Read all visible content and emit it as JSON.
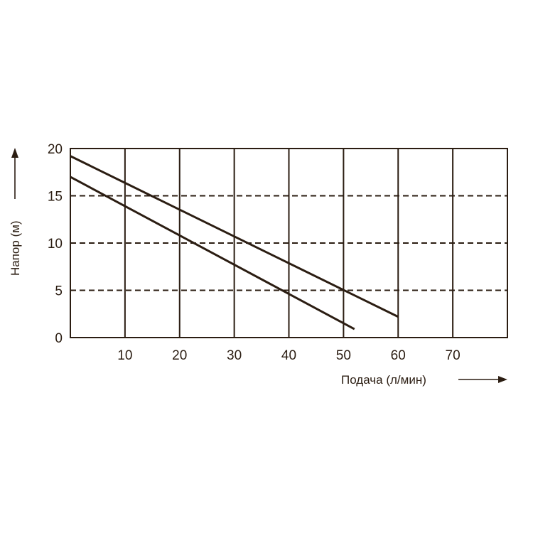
{
  "chart_data": {
    "type": "line",
    "title": "",
    "xlabel": "Подача (л/мин)",
    "ylabel": "Напор (м)",
    "xlim": [
      0,
      80
    ],
    "ylim": [
      0,
      20
    ],
    "x_ticks": [
      10,
      20,
      30,
      40,
      50,
      60,
      70
    ],
    "y_ticks": [
      0,
      5,
      10,
      15,
      20
    ],
    "grid": {
      "vertical": "solid",
      "horizontal": "dashed"
    },
    "colors": {
      "line": "#2b1d12",
      "grid": "#2b1d12"
    },
    "series": [
      {
        "x": [
          0,
          60
        ],
        "y": [
          19.2,
          2.2
        ]
      },
      {
        "x": [
          0,
          52
        ],
        "y": [
          17.0,
          0.9
        ]
      }
    ]
  }
}
